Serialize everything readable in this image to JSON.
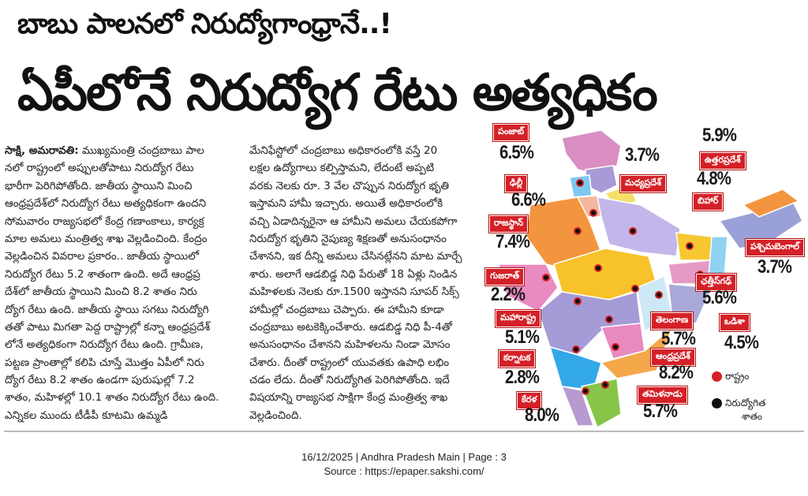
{
  "kicker": "బాబు పాలనలో నిరుద్యోగాంధ్రానే..!",
  "headline": "ఏపీలోనే నిరుద్యోగ రేటు అత్యధికం",
  "article": {
    "dateline": "సాక్షి, అమరావతి:",
    "left_lines": [
      " ముఖ్యమంత్రి చంద్రబాబు పాల",
      "నలో రాష్ట్రంలో అప్పులతోపాటు నిరుద్యోగ రేటు",
      "భారీగా పెరిగిపోతోంది. జాతీయ స్థాయిని మించి",
      "ఆంధ్రప్రదేశ్‌లో నిరుద్యోగ రేటు అత్యధికంగా ఉందని",
      "సోమవారం రాజ్యసభలో కేంద్ర గణాంకాలు, కార్యక్ర",
      "మాల అమలు మంత్రిత్వ శాఖ వెల్లడించింది. కేంద్రం",
      "వెల్లడించిన వివరాల ప్రకారం.. జాతీయ స్థాయిలో",
      "నిరుద్యోగ రేటు 5.2 శాతంగా ఉంది. అదే ఆంధ్రప్ర",
      "దేశ్‌లో జాతీయ స్థాయిని మించి  8.2 శాతం నిరు",
      "ద్యోగ రేటు ఉంది.  జాతీయ స్థాయి సగటు నిరుద్యోగి",
      "తతో పాటు మిగతా పెద్ద రాష్ట్రాల్లో కన్నా ఆంధ్రప్రదేశ్",
      "లోనే అత్యధికంగా నిరుద్యోగ రేటు ఉంది. గ్రామీణ,",
      "పట్టణ ప్రాంతాల్లో కలిపి చూస్తే మొత్తం ఏపీలో నిరు",
      "ద్యోగ రేటు 8.2 శాతం ఉండగా పురుషుల్లో 7.2",
      "శాతం, మహిళల్లో 10.1 శాతం నిరుద్యోగ రేటు ఉంది.",
      "ఎన్నికల ముందు టీడీపీ కూటమి ఉమ్మడి"
    ],
    "mid_lines": [
      "మేనిఫేస్టోలో చంద్రబాబు అధికారంలోకి వస్తే 20",
      "లక్షల ఉద్యోగాలు కల్పిస్తామని, లేదంటే అప్పటి",
      "వరకు నెలకు రూ. 3 వేల చొప్పున నిరుద్యోగ భృతి",
      "ఇస్తామని హామీ ఇచ్చారు. అయితే అధికారంలోకి",
      "వచ్చి ఏడాదిన్నరైనా ఆ హామీని అమలు చేయకపోగా",
      "నిరుద్యోగ భృతిని నైపుణ్య శిక్షణతో అనుసంధానం",
      "చేశానని, ఇక దీన్ని అమలు చేసినట్లేనని మాట మార్చే",
      "శారు. అలాగే ఆడబిడ్డ నిధి పేరుతో 18 ఏళ్లు నిండిన",
      "మహిళలకు నెలకు రూ.1500 ఇస్తానని సూపర్ సిక్స్",
      "హామీల్లో చంద్రబాబు చెప్పారు. ఈ హామీని కూడా",
      "చంద్రబాబు అటకెక్కించేశారు. ఆడబిడ్డ నిధి పీ-4తో",
      "అనుసంధానం చేశానని మహిళలను నిండా మోసం",
      "చేశారు. దీంతో రాష్ట్రంలో యువతకు ఉపాధి లభిం",
      "చడం లేదు. దీంతో నిరుద్యోగిత పెరిగిపోతోంది. ఇదే",
      "విషయాన్ని రాజ్యసభ సాక్షిగా కేంద్ర మంత్రిత్వ శాఖ",
      "వెల్లడించింది."
    ]
  },
  "map": {
    "states": [
      {
        "id": "punjab",
        "name": "పంజాబ్",
        "value": "6.5%"
      },
      {
        "id": "delhi",
        "name": "ఢిల్లీ",
        "value": "6.6%"
      },
      {
        "id": "rajasthan",
        "name": "రాజస్థాన్",
        "value": "7.4%"
      },
      {
        "id": "gujarat",
        "name": "గుజరాత్",
        "value": "2.2%"
      },
      {
        "id": "maharashtra",
        "name": "మహారాష్ట్ర",
        "value": "5.1%"
      },
      {
        "id": "karnataka",
        "name": "కర్నాటక",
        "value": "2.8%"
      },
      {
        "id": "kerala",
        "name": "కేరళ",
        "value": "8.0%"
      },
      {
        "id": "madhya-pradesh",
        "name": "మధ్యప్రదేశ్",
        "value": "3.7%"
      },
      {
        "id": "uttar-pradesh",
        "name": "ఉత్తరప్రదేశ్",
        "value": "4.8%"
      },
      {
        "id": "bihar",
        "name": "బిహార్",
        "value": "5.9%"
      },
      {
        "id": "west-bengal",
        "name": "పశ్చిమబెంగాల్",
        "value": "3.7%"
      },
      {
        "id": "chhattisgarh",
        "name": "ఛత్తీస్‌గఢ్",
        "value": "5.6%"
      },
      {
        "id": "odisha",
        "name": "ఒడిశా",
        "value": "4.5%"
      },
      {
        "id": "telangana",
        "name": "తెలంగాణ",
        "value": "5.7%"
      },
      {
        "id": "andhra-pradesh",
        "name": "ఆంధ్రప్రదేశ్",
        "value": "8.2%"
      },
      {
        "id": "tamil-nadu",
        "name": "తమిళనాడు",
        "value": "5.7%"
      }
    ],
    "legend": {
      "state": "రాష్ట్రం",
      "rate_line1": "నిరుద్యోగిత",
      "rate_line2": "శాతం",
      "state_color": "#d42128",
      "rate_color": "#111111"
    }
  },
  "footer": {
    "line1": "16/12/2025 | Andhra Pradesh Main  | Page : 3",
    "line2": "Source : https://epaper.sakshi.com/"
  }
}
